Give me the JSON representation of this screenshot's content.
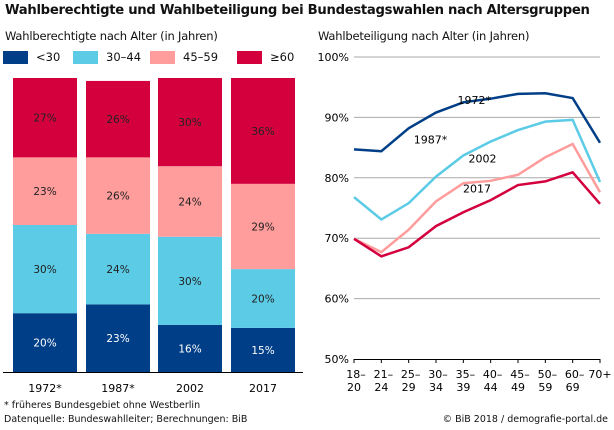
{
  "title": "Wahlberechtigte und Wahlbeteiligung bei Bundestagswahlen nach Altersgruppen",
  "footnote": "* früheres Bundesgebiet ohne Westberlin",
  "source": "Datenquelle: Bundeswahlleiter; Berechnungen: BiB",
  "credit": "© BiB 2018 / demografie-portal.de",
  "chart_data": [
    {
      "type": "bar",
      "stacked": true,
      "subtitle": "Wahlberechtigte nach Alter (in Jahren)",
      "categories": [
        "1972*",
        "1987*",
        "2002",
        "2017"
      ],
      "series": [
        {
          "name": "<30",
          "color": "#003f87",
          "values": [
            20,
            23,
            16,
            15
          ]
        },
        {
          "name": "30–44",
          "color": "#5ccbe6",
          "values": [
            30,
            24,
            30,
            20
          ]
        },
        {
          "name": "45–59",
          "color": "#ff9c9c",
          "values": [
            23,
            26,
            24,
            29
          ]
        },
        {
          "name": "≥60",
          "color": "#d4003e",
          "values": [
            27,
            26,
            30,
            36
          ]
        }
      ],
      "unit": "%",
      "legend": "top"
    },
    {
      "type": "line",
      "subtitle": "Wahlbeteiligung nach Alter (in Jahren)",
      "categories": [
        "18–\n20",
        "21–\n24",
        "25–\n29",
        "30–\n34",
        "35–\n39",
        "40–\n44",
        "45–\n49",
        "50–\n59",
        "60–\n69",
        "70+"
      ],
      "ylim": [
        50,
        100
      ],
      "yticks": [
        "50%",
        "60%",
        "70%",
        "80%",
        "90%",
        "100%"
      ],
      "grid": true,
      "series": [
        {
          "name": "1972*",
          "color": "#003f87",
          "values": [
            84.7,
            84.4,
            88.2,
            90.8,
            92.5,
            93.1,
            93.9,
            94.0,
            93.2,
            85.8
          ]
        },
        {
          "name": "1987*",
          "color": "#5ccbe6",
          "values": [
            76.8,
            73.1,
            75.8,
            80.2,
            83.7,
            86.0,
            87.9,
            89.3,
            89.6,
            79.3
          ]
        },
        {
          "name": "2002",
          "color": "#ff9c9c",
          "values": [
            69.9,
            67.7,
            71.4,
            76.1,
            79.1,
            79.5,
            80.5,
            83.4,
            85.6,
            77.6
          ]
        },
        {
          "name": "2017",
          "color": "#d4003e",
          "values": [
            69.9,
            67.0,
            68.5,
            72.0,
            74.3,
            76.3,
            78.8,
            79.4,
            80.9,
            75.7
          ]
        }
      ]
    }
  ]
}
